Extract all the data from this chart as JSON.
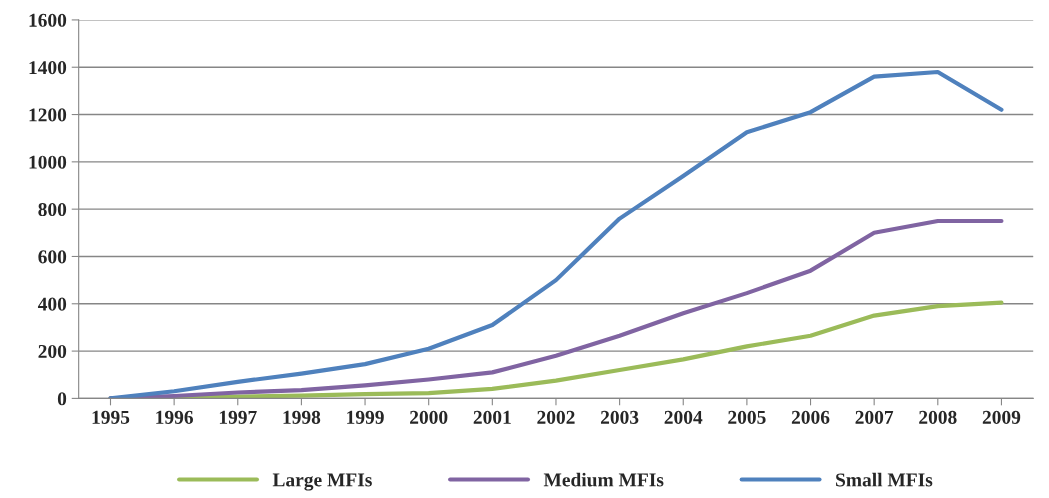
{
  "chart_data": {
    "type": "line",
    "categories": [
      "1995",
      "1996",
      "1997",
      "1998",
      "1999",
      "2000",
      "2001",
      "2002",
      "2003",
      "2004",
      "2005",
      "2006",
      "2007",
      "2008",
      "2009"
    ],
    "series": [
      {
        "name": "Large MFIs",
        "color": "#9bbb59",
        "values": [
          0,
          3,
          8,
          12,
          18,
          22,
          40,
          75,
          120,
          165,
          220,
          265,
          350,
          390,
          405
        ]
      },
      {
        "name": "Medium MFIs",
        "color": "#8064a2",
        "values": [
          0,
          10,
          25,
          35,
          55,
          80,
          110,
          180,
          265,
          360,
          445,
          540,
          700,
          750,
          750
        ]
      },
      {
        "name": "Small MFIs",
        "color": "#4f81bd",
        "values": [
          0,
          30,
          70,
          105,
          145,
          210,
          310,
          500,
          760,
          940,
          1125,
          1210,
          1360,
          1380,
          1220
        ]
      }
    ],
    "ylim": [
      0,
      1600
    ],
    "yticks": [
      0,
      200,
      400,
      600,
      800,
      1000,
      1200,
      1400,
      1600
    ],
    "grid": "y",
    "legend": "bottom",
    "marker": "none",
    "line_style": "solid"
  }
}
